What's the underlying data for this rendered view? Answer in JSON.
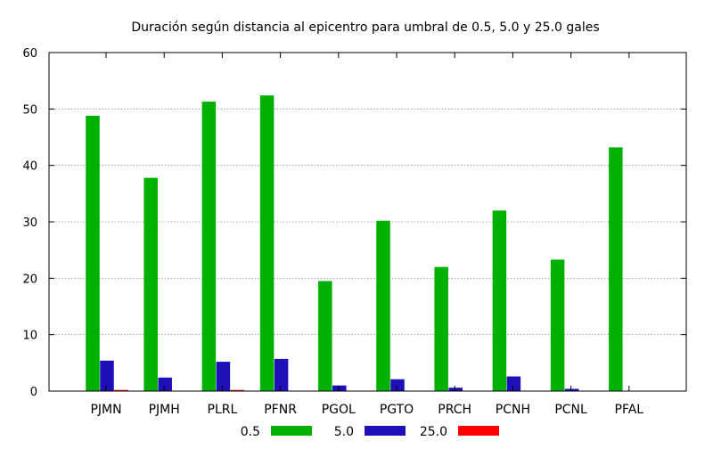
{
  "chart_data": {
    "type": "bar",
    "title": "Duración según distancia al epicentro para umbral de 0.5, 5.0 y 25.0 gales",
    "xlabel": "",
    "ylabel": "",
    "categories": [
      "PJMN",
      "PJMH",
      "PLRL",
      "PFNR",
      "PGOL",
      "PGTO",
      "PRCH",
      "PCNH",
      "PCNL",
      "PFAL"
    ],
    "series": [
      {
        "name": "0.5",
        "color": "#00b000",
        "values": [
          48.8,
          37.8,
          51.3,
          52.4,
          19.5,
          30.2,
          22.0,
          32.0,
          23.3,
          43.2
        ]
      },
      {
        "name": "5.0",
        "color": "#1f0fb8",
        "values": [
          5.4,
          2.4,
          5.2,
          5.7,
          1.0,
          2.1,
          0.6,
          2.6,
          0.4,
          0.0
        ]
      },
      {
        "name": "25.0",
        "color": "#ff0000",
        "values": [
          0.2,
          0.0,
          0.2,
          0.0,
          0.0,
          0.0,
          0.0,
          0.0,
          0.0,
          0.0
        ]
      }
    ],
    "ylim": [
      0,
      60
    ],
    "yticks": [
      0,
      10,
      20,
      30,
      40,
      50,
      60
    ],
    "grid": true,
    "legend_position": "bottom"
  }
}
